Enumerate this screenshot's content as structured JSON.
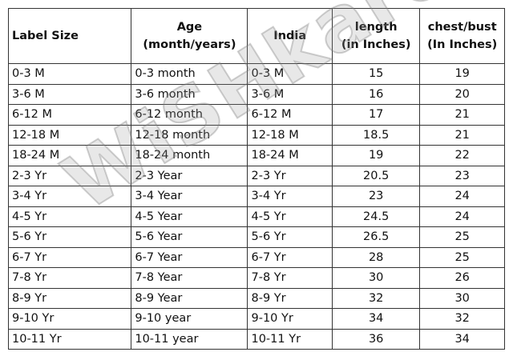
{
  "headers": [
    "Label Size",
    "Age\n(month/years)",
    "India",
    "length\n(in Inches)",
    "chest/bust\n(In Inches)"
  ],
  "header_lines": [
    [
      "Label Size"
    ],
    [
      "Age",
      "(month/years)"
    ],
    [
      "India"
    ],
    [
      "length",
      "(in Inches)"
    ],
    [
      "chest/bust",
      "(In Inches)"
    ]
  ],
  "rows": [
    [
      "0-3 M",
      "0-3 month",
      "0-3 M",
      "15",
      "19"
    ],
    [
      "3-6 M",
      "3-6 month",
      "3-6 M",
      "16",
      "20"
    ],
    [
      "6-12 M",
      "6-12 month",
      "6-12 M",
      "17",
      "21"
    ],
    [
      "12-18 M",
      "12-18 month",
      "12-18 M",
      "18.5",
      "21"
    ],
    [
      "18-24 M",
      "18-24 month",
      "18-24 M",
      "19",
      "22"
    ],
    [
      "2-3 Yr",
      "2-3 Year",
      "2-3 Yr",
      "20.5",
      "23"
    ],
    [
      "3-4 Yr",
      "3-4 Year",
      "3-4 Yr",
      "23",
      "24"
    ],
    [
      "4-5 Yr",
      "4-5 Year",
      "4-5 Yr",
      "24.5",
      "24"
    ],
    [
      "5-6 Yr",
      "5-6 Year",
      "5-6 Yr",
      "26.5",
      "25"
    ],
    [
      "6-7 Yr",
      "6-7 Year",
      "6-7 Yr",
      "28",
      "25"
    ],
    [
      "7-8 Yr",
      "7-8 Year",
      "7-8 Yr",
      "30",
      "26"
    ],
    [
      "8-9 Yr",
      "8-9 Year",
      "8-9 Yr",
      "32",
      "30"
    ],
    [
      "9-10 Yr",
      "9-10 year",
      "9-10 Yr",
      "34",
      "32"
    ],
    [
      "10-11 Yr",
      "10-11 year",
      "10-11 Yr",
      "36",
      "34"
    ]
  ],
  "watermark": "WiSHkaro"
}
